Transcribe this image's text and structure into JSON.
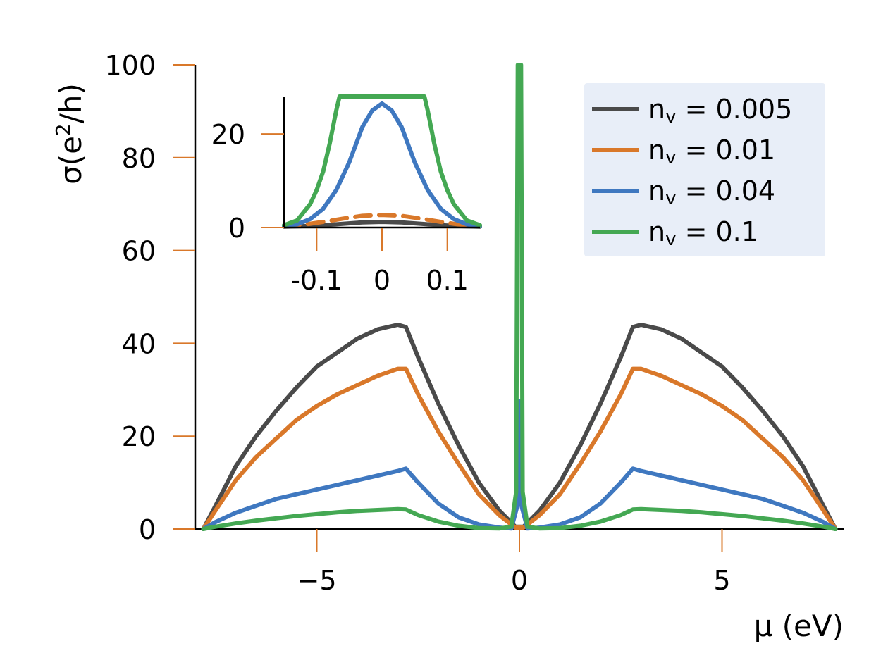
{
  "chart_data": {
    "type": "line",
    "xlabel": "μ (eV)",
    "ylabel_prefix": "σ(e",
    "ylabel_sup": "2",
    "ylabel_suffix": "/h)",
    "xlim": [
      -8,
      8
    ],
    "ylim": [
      0,
      100
    ],
    "xticks": [
      -5,
      0,
      5
    ],
    "xtick_labels": [
      "−5",
      "0",
      "5"
    ],
    "yticks": [
      0,
      20,
      40,
      60,
      80,
      100
    ],
    "ytick_labels": [
      "0",
      "20",
      "40",
      "60",
      "80",
      "100"
    ],
    "tick_color": "#d9782a",
    "legend_position": "top-right",
    "legend_bg": "#e8eef8",
    "series": [
      {
        "name": "nv = 0.005",
        "label_n": "n",
        "label_sub": "v",
        "label_value": "= 0.005",
        "color": "#4a4a4a",
        "x": [
          -7.8,
          -7.5,
          -7,
          -6.5,
          -6,
          -5.5,
          -5,
          -4.5,
          -4,
          -3.5,
          -3,
          -2.8,
          -2.5,
          -2,
          -1.5,
          -1,
          -0.5,
          -0.1,
          0.1,
          0.5,
          1,
          1.5,
          2,
          2.5,
          2.8,
          3,
          3.5,
          4,
          4.5,
          5,
          5.5,
          6,
          6.5,
          7,
          7.5,
          7.8
        ],
        "y": [
          0,
          5,
          13.5,
          20,
          25.5,
          30.5,
          35,
          38,
          41,
          43,
          44,
          43.5,
          37,
          27,
          18,
          10,
          4,
          0.5,
          0.5,
          4,
          10,
          18,
          27,
          37,
          43.5,
          44,
          43,
          41,
          38,
          35,
          30.5,
          25.5,
          20,
          13.5,
          5,
          0
        ]
      },
      {
        "name": "nv = 0.01",
        "label_n": "n",
        "label_sub": "v",
        "label_value": "= 0.01",
        "color": "#d9782a",
        "x": [
          -7.8,
          -7.5,
          -7,
          -6.5,
          -6,
          -5.5,
          -5,
          -4.5,
          -4,
          -3.5,
          -3,
          -2.8,
          -2.5,
          -2,
          -1.5,
          -1,
          -0.5,
          -0.1,
          0.1,
          0.5,
          1,
          1.5,
          2,
          2.5,
          2.8,
          3,
          3.5,
          4,
          4.5,
          5,
          5.5,
          6,
          6.5,
          7,
          7.5,
          7.8
        ],
        "y": [
          0,
          4,
          10.5,
          15.5,
          19.5,
          23.5,
          26.5,
          29,
          31,
          33,
          34.5,
          34.5,
          29,
          21,
          14,
          7.5,
          3,
          0.3,
          0.3,
          3,
          7.5,
          14,
          21,
          29,
          34.5,
          34.5,
          33,
          31,
          29,
          26.5,
          23.5,
          19.5,
          15.5,
          10.5,
          4,
          0
        ]
      },
      {
        "name": "nv = 0.04",
        "label_n": "n",
        "label_sub": "v",
        "label_value": "= 0.04",
        "color": "#3f78c0",
        "x": [
          -7.8,
          -7.5,
          -7,
          -6.5,
          -6,
          -5.5,
          -5,
          -4.5,
          -4,
          -3.5,
          -3,
          -2.8,
          -2.5,
          -2,
          -1.5,
          -1,
          -0.5,
          -0.2,
          -0.05,
          0,
          0.05,
          0.2,
          0.5,
          1,
          1.5,
          2,
          2.5,
          2.8,
          3,
          3.5,
          4,
          4.5,
          5,
          5.5,
          6,
          6.5,
          7,
          7.5,
          7.8
        ],
        "y": [
          0,
          1.5,
          3.5,
          5,
          6.5,
          7.5,
          8.5,
          9.5,
          10.5,
          11.5,
          12.5,
          13,
          10,
          5.5,
          2.5,
          1,
          0.3,
          0.1,
          5,
          27.5,
          5,
          0.1,
          0.3,
          1,
          2.5,
          5.5,
          10,
          13,
          12.5,
          11.5,
          10.5,
          9.5,
          8.5,
          7.5,
          6.5,
          5,
          3.5,
          1.5,
          0
        ]
      },
      {
        "name": "nv = 0.1",
        "label_n": "n",
        "label_sub": "v",
        "label_value": "= 0.1",
        "color": "#44a853",
        "x": [
          -7.8,
          -7.5,
          -7,
          -6.5,
          -6,
          -5.5,
          -5,
          -4.5,
          -4,
          -3.5,
          -3,
          -2.8,
          -2.5,
          -2,
          -1.5,
          -1,
          -0.5,
          -0.2,
          -0.08,
          -0.04,
          0,
          0.04,
          0.08,
          0.2,
          0.5,
          1,
          1.5,
          2,
          2.5,
          2.8,
          3,
          3.5,
          4,
          4.5,
          5,
          5.5,
          6,
          6.5,
          7,
          7.5,
          7.8
        ],
        "y": [
          0,
          0.5,
          1.2,
          1.8,
          2.3,
          2.8,
          3.2,
          3.6,
          3.9,
          4.1,
          4.3,
          4.2,
          3,
          1.6,
          0.7,
          0.2,
          0.1,
          0.5,
          8,
          100,
          100,
          100,
          8,
          0.5,
          0.1,
          0.2,
          0.7,
          1.6,
          3,
          4.2,
          4.3,
          4.1,
          3.9,
          3.6,
          3.2,
          2.8,
          2.3,
          1.8,
          1.2,
          0.5,
          0
        ]
      }
    ],
    "inset": {
      "xlim": [
        -0.15,
        0.15
      ],
      "ylim": [
        0,
        28
      ],
      "xticks": [
        -0.1,
        0,
        0.1
      ],
      "xtick_labels": [
        "-0.1",
        "0",
        "0.1"
      ],
      "yticks": [
        0,
        20
      ],
      "ytick_labels": [
        "0",
        "20"
      ],
      "series": [
        {
          "name": "nv = 0.005",
          "color": "#4a4a4a",
          "dashed": false,
          "x": [
            -0.15,
            -0.12,
            -0.09,
            -0.06,
            -0.03,
            0,
            0.03,
            0.06,
            0.09,
            0.12,
            0.15
          ],
          "y": [
            0.2,
            0.3,
            0.5,
            0.8,
            1.1,
            1.2,
            1.1,
            0.8,
            0.5,
            0.3,
            0.2
          ]
        },
        {
          "name": "nv = 0.01",
          "color": "#d9782a",
          "dashed": true,
          "x": [
            -0.15,
            -0.12,
            -0.09,
            -0.06,
            -0.03,
            0,
            0.03,
            0.06,
            0.09,
            0.12,
            0.15
          ],
          "y": [
            0.4,
            0.6,
            1.2,
            1.9,
            2.5,
            2.7,
            2.5,
            1.9,
            1.2,
            0.6,
            0.4
          ]
        },
        {
          "name": "nv = 0.04",
          "color": "#3f78c0",
          "dashed": false,
          "x": [
            -0.15,
            -0.13,
            -0.11,
            -0.09,
            -0.07,
            -0.05,
            -0.03,
            -0.015,
            0,
            0.015,
            0.03,
            0.05,
            0.07,
            0.09,
            0.11,
            0.13,
            0.15
          ],
          "y": [
            0.3,
            0.7,
            1.8,
            4,
            8,
            14,
            21.5,
            25,
            26.5,
            25,
            21.5,
            14,
            8,
            4,
            1.8,
            0.7,
            0.3
          ]
        },
        {
          "name": "nv = 0.1",
          "color": "#44a853",
          "dashed": false,
          "x": [
            -0.15,
            -0.13,
            -0.11,
            -0.1,
            -0.09,
            -0.08,
            -0.07,
            -0.065,
            0.065,
            0.07,
            0.08,
            0.09,
            0.1,
            0.11,
            0.13,
            0.15
          ],
          "y": [
            0.5,
            1.5,
            5,
            8,
            12,
            18,
            25,
            28,
            28,
            25,
            18,
            12,
            8,
            5,
            1.5,
            0.5
          ]
        }
      ]
    }
  }
}
